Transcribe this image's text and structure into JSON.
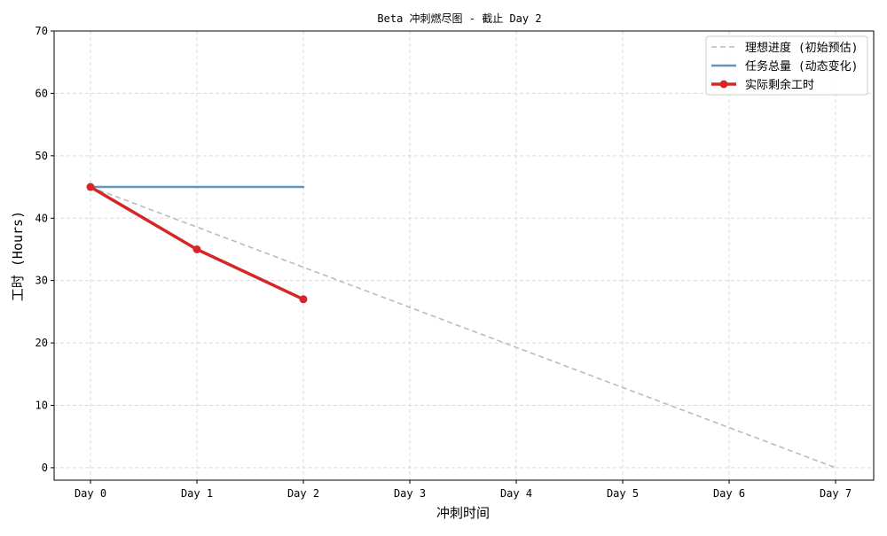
{
  "chart_data": {
    "type": "line",
    "title": "Beta 冲刺燃尽图 - 截止 Day 2",
    "xlabel": "冲刺时间",
    "ylabel": "工时 (Hours)",
    "categories": [
      "Day 0",
      "Day 1",
      "Day 2",
      "Day 3",
      "Day 4",
      "Day 5",
      "Day 6",
      "Day 7"
    ],
    "ylim": [
      -2,
      70
    ],
    "yticks": [
      0,
      10,
      20,
      30,
      40,
      50,
      60,
      70
    ],
    "grid": true,
    "legend_position": "top-right",
    "series": [
      {
        "name": "理想进度 (初始预估)",
        "style": "dashed",
        "color": "#bbbbbb",
        "x": [
          0,
          1,
          2,
          3,
          4,
          5,
          6,
          7
        ],
        "values": [
          45,
          38.57,
          32.14,
          25.71,
          19.29,
          12.86,
          6.43,
          0
        ]
      },
      {
        "name": "任务总量 (动态变化)",
        "style": "solid",
        "color": "#5f96c0",
        "x": [
          0,
          1,
          2
        ],
        "values": [
          45,
          45,
          45
        ]
      },
      {
        "name": "实际剩余工时",
        "style": "solid-markers",
        "color": "#d62728",
        "x": [
          0,
          1,
          2
        ],
        "values": [
          45,
          35,
          27
        ]
      }
    ]
  }
}
